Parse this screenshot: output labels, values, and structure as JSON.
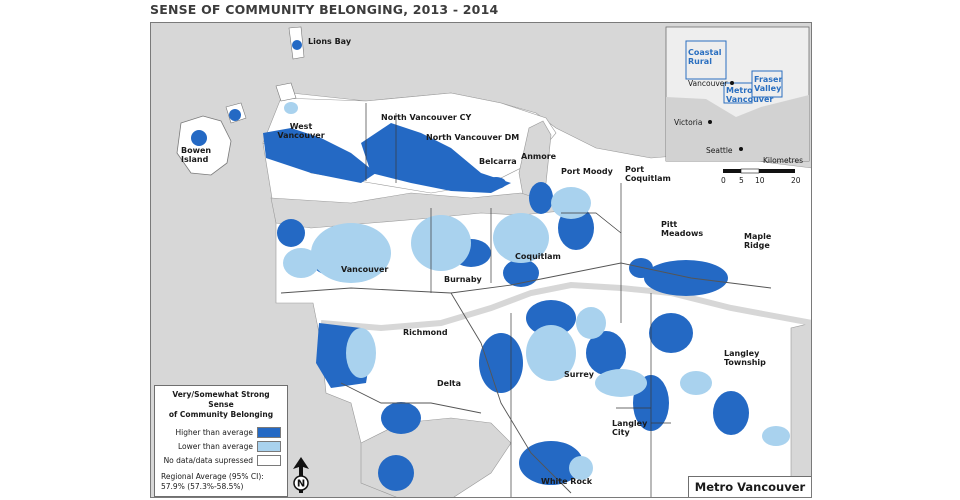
{
  "title": "SENSE OF COMMUNITY BELONGING, 2013 - 2014",
  "colors": {
    "higher": "#2469c4",
    "lower": "#a9d2ee",
    "no_data": "#ffffff",
    "background": "#d7d7d7",
    "boundary": "#3a3a3a"
  },
  "places": {
    "lions_bay": "Lions Bay",
    "west_vancouver": "West\nVancouver",
    "north_vancouver_cy": "North Vancouver CY",
    "north_vancouver_dm": "North Vancouver DM",
    "bowen_island": "Bowen\nIsland",
    "belcarra": "Belcarra",
    "anmore": "Anmore",
    "port_moody": "Port Moody",
    "port_coquitlam": "Port\nCoquitlam",
    "pitt_meadows": "Pitt\nMeadows",
    "maple_ridge": "Maple\nRidge",
    "vancouver": "Vancouver",
    "burnaby": "Burnaby",
    "coquitlam": "Coquitlam",
    "richmond": "Richmond",
    "delta": "Delta",
    "surrey": "Surrey",
    "langley_township": "Langley\nTownship",
    "langley_city": "Langley\nCity",
    "white_rock": "White Rock"
  },
  "inset": {
    "coastal_rural": "Coastal\nRural",
    "metro_vancouver": "Metro\nVancouver",
    "fraser_valley": "Fraser\nValley",
    "vancouver": "Vancouver",
    "victoria": "Victoria",
    "seattle": "Seattle"
  },
  "scale_bar": {
    "unit": "Kilometres",
    "ticks": [
      "0",
      "5",
      "10",
      "20"
    ]
  },
  "legend": {
    "title": "Very/Somewhat Strong Sense\nof Community Belonging",
    "items": [
      {
        "label": "Higher than average",
        "color": "#2469c4"
      },
      {
        "label": "Lower than average",
        "color": "#a9d2ee"
      },
      {
        "label": "No data/data supressed",
        "color": "#ffffff"
      }
    ],
    "regional_average": "Regional Average (95% CI):\n57.9% (57.3%-58.5%)"
  },
  "north_label": "N",
  "region_label": "Metro Vancouver"
}
